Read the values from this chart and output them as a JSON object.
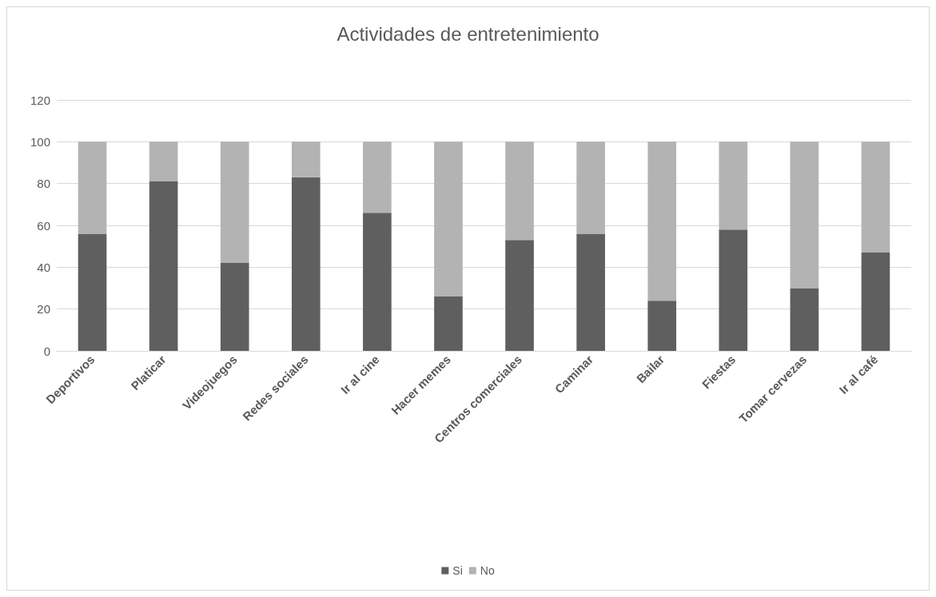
{
  "chart_data": {
    "type": "bar",
    "title": "Actividades de entretenimiento",
    "categories": [
      "Deportivos",
      "Platicar",
      "Videojuegos",
      "Redes sociales",
      "Ir al cine",
      "Hacer memes",
      "Centros comerciales",
      "Caminar",
      "Bailar",
      "Fiestas",
      "Tomar cervezas",
      "Ir al café"
    ],
    "series": [
      {
        "name": "Si",
        "color": "#5f5f5f",
        "values": [
          56,
          81,
          42,
          83,
          66,
          26,
          53,
          56,
          24,
          58,
          30,
          47
        ]
      },
      {
        "name": "No",
        "color": "#b3b3b3",
        "values": [
          44,
          19,
          58,
          17,
          34,
          74,
          47,
          44,
          76,
          42,
          70,
          53
        ]
      }
    ],
    "stacked": true,
    "ylim": [
      0,
      120
    ],
    "yticks": [
      0,
      20,
      40,
      60,
      80,
      100,
      120
    ],
    "grid": "y",
    "legend": "bottom"
  }
}
